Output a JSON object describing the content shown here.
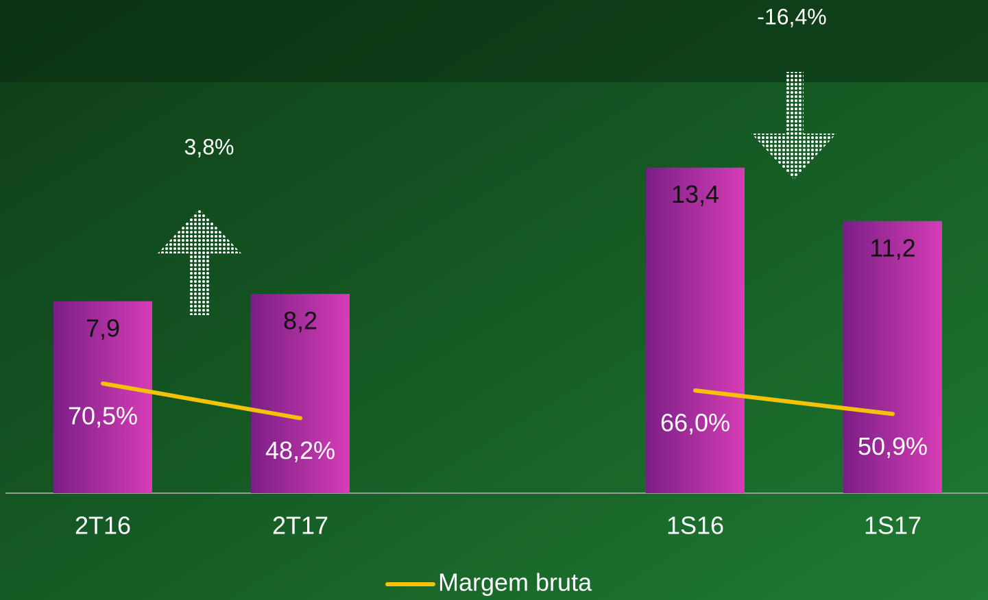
{
  "chart_data": {
    "type": "bar",
    "categories": [
      "2T16",
      "2T17",
      null,
      "1S16",
      "1S17"
    ],
    "series": [
      {
        "color": "#d63db5",
        "values": [
          7.9,
          8.2,
          null,
          13.4,
          11.2
        ],
        "value_labels": [
          "7,9",
          "8,2",
          null,
          "13,4",
          "11,2"
        ]
      },
      {
        "name": "Margem bruta",
        "type": "line",
        "axis": "y2",
        "color": "#f5c20a",
        "values": [
          70.5,
          48.2,
          null,
          66.0,
          50.9
        ],
        "value_labels": [
          "70,5%",
          "48,2%",
          null,
          "66,0%",
          "50,9%"
        ]
      }
    ],
    "ylim": [
      0,
      20.3
    ],
    "y2lim": [
      0,
      317
    ],
    "annotations": [
      "3,8%",
      "-16,4%"
    ],
    "legend": "bottom"
  }
}
